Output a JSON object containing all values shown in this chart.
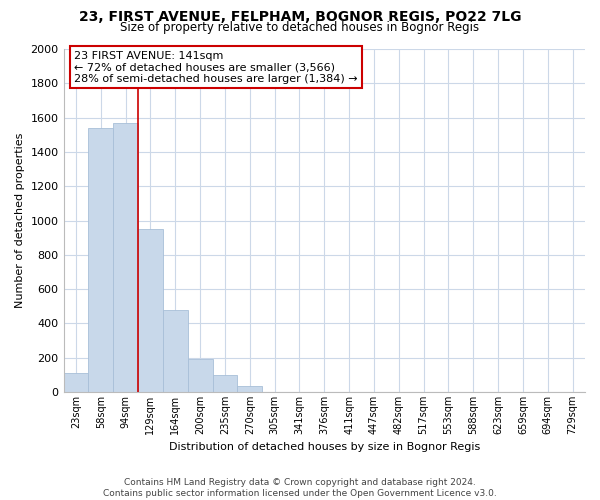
{
  "title": "23, FIRST AVENUE, FELPHAM, BOGNOR REGIS, PO22 7LG",
  "subtitle": "Size of property relative to detached houses in Bognor Regis",
  "xlabel": "Distribution of detached houses by size in Bognor Regis",
  "ylabel": "Number of detached properties",
  "bar_labels": [
    "23sqm",
    "58sqm",
    "94sqm",
    "129sqm",
    "164sqm",
    "200sqm",
    "235sqm",
    "270sqm",
    "305sqm",
    "341sqm",
    "376sqm",
    "411sqm",
    "447sqm",
    "482sqm",
    "517sqm",
    "553sqm",
    "588sqm",
    "623sqm",
    "659sqm",
    "694sqm",
    "729sqm"
  ],
  "bar_values": [
    110,
    1540,
    1570,
    950,
    480,
    190,
    100,
    35,
    0,
    0,
    0,
    0,
    0,
    0,
    0,
    0,
    0,
    0,
    0,
    0,
    0
  ],
  "bar_color": "#c8d8ea",
  "bar_edge_color": "#a8bfd8",
  "ylim": [
    0,
    2000
  ],
  "yticks": [
    0,
    200,
    400,
    600,
    800,
    1000,
    1200,
    1400,
    1600,
    1800,
    2000
  ],
  "property_line_color": "#cc0000",
  "annotation_title": "23 FIRST AVENUE: 141sqm",
  "annotation_line1": "← 72% of detached houses are smaller (3,566)",
  "annotation_line2": "28% of semi-detached houses are larger (1,384) →",
  "annotation_box_color": "#ffffff",
  "annotation_box_edge": "#cc0000",
  "background_color": "#ffffff",
  "grid_color": "#ccd8e8",
  "footer_line1": "Contains HM Land Registry data © Crown copyright and database right 2024.",
  "footer_line2": "Contains public sector information licensed under the Open Government Licence v3.0."
}
